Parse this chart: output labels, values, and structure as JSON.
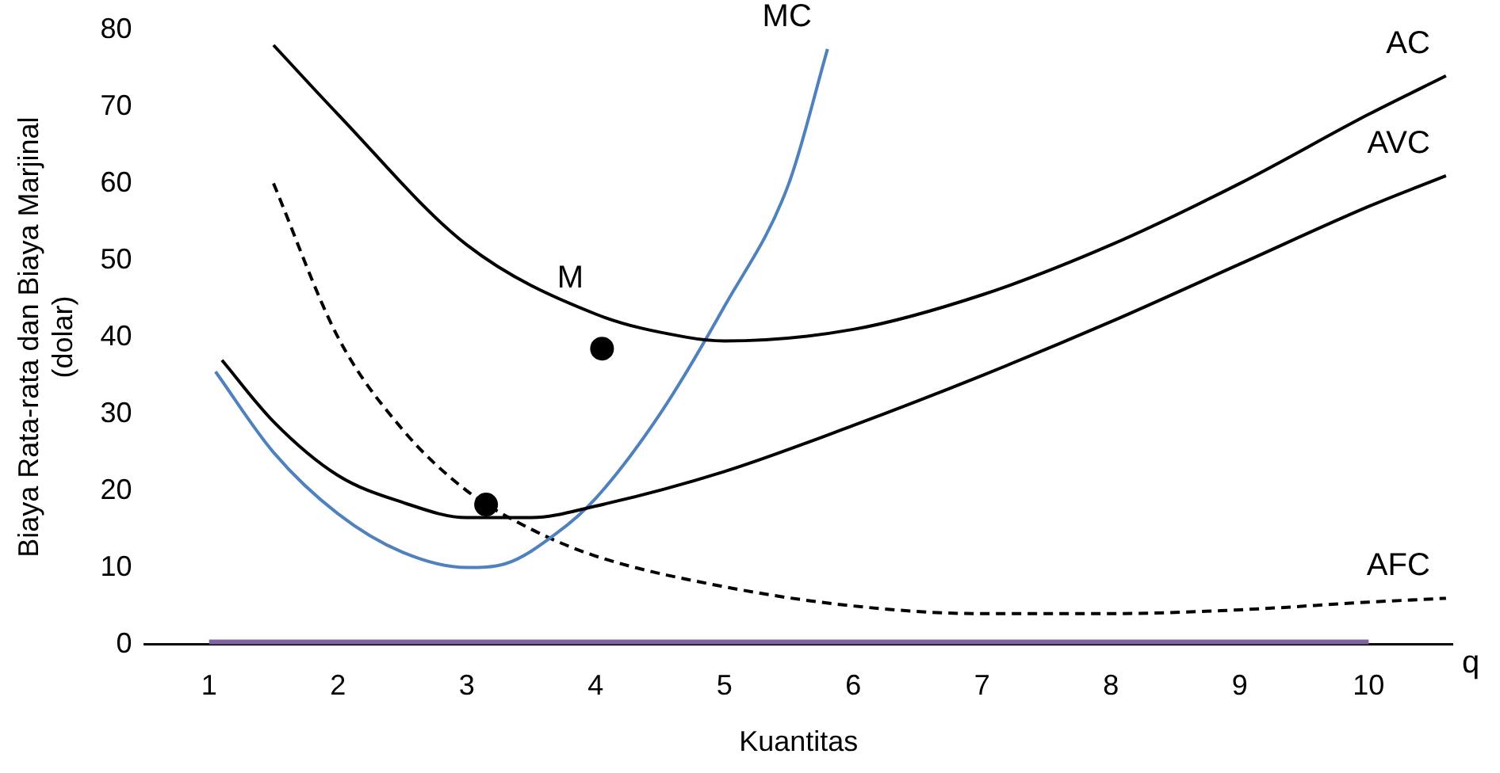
{
  "chart_data": {
    "type": "line",
    "xlabel": "Kuantitas",
    "ylabel": "Biaya Rata-rata dan Biaya Marjinal\n(dolar)",
    "xlim": [
      0.5,
      10.65
    ],
    "xticks": [
      1,
      2,
      3,
      4,
      5,
      6,
      7,
      8,
      9,
      10
    ],
    "ylim": [
      0,
      80
    ],
    "yticks": [
      0,
      10,
      20,
      30,
      40,
      50,
      60,
      70,
      80
    ],
    "grid": false,
    "legend": false,
    "annotations": [
      {
        "text": "M",
        "x": 4.05,
        "y": 38.5
      },
      "q"
    ],
    "series": [
      {
        "color": "#8064a2",
        "x": [
          1,
          10
        ],
        "values": [
          0,
          0
        ],
        "marker": "none",
        "line_style": "solid"
      },
      {
        "name": "AC",
        "color": "#000000",
        "x": [
          1.5,
          2,
          3,
          4,
          4.7,
          5,
          6,
          7,
          8,
          9,
          10,
          10.6
        ],
        "values": [
          78,
          69,
          52,
          43,
          40,
          39.5,
          41,
          45.5,
          52,
          60,
          69,
          74
        ],
        "marker": "none",
        "line_style": "solid"
      },
      {
        "name": "AVC",
        "color": "#000000",
        "x": [
          1.1,
          1.5,
          2,
          2.5,
          3,
          3.5,
          4,
          5,
          6,
          7,
          8,
          9,
          10,
          10.6
        ],
        "values": [
          37,
          29,
          22,
          18.5,
          16.5,
          16.5,
          18,
          22.5,
          28.5,
          35,
          42,
          49.5,
          57,
          61
        ],
        "marker": "none",
        "line_style": "solid"
      },
      {
        "name": "MC",
        "color": "#4f81bd",
        "x": [
          1.05,
          1.5,
          2,
          2.5,
          3,
          3.3,
          3.7,
          4,
          4.5,
          5,
          5.5,
          5.8
        ],
        "values": [
          35.5,
          25,
          17,
          12,
          10,
          10.5,
          14.5,
          19,
          30,
          44,
          60,
          77.5
        ],
        "marker": "none",
        "line_style": "solid"
      },
      {
        "name": "AFC",
        "color": "#000000",
        "x": [
          1.5,
          2,
          2.5,
          3,
          3.5,
          4,
          5,
          6,
          7,
          8,
          9,
          10,
          10.6
        ],
        "values": [
          60,
          40,
          28,
          20,
          15,
          11.5,
          7.5,
          5,
          4,
          4,
          4.5,
          5.5,
          6
        ],
        "marker": "none",
        "line_style": "dashed"
      },
      {
        "type": "scatter",
        "color": "#000000",
        "x": [
          4.05,
          3.15
        ],
        "values": [
          38.5,
          18.2
        ],
        "marker": "circle"
      }
    ]
  }
}
